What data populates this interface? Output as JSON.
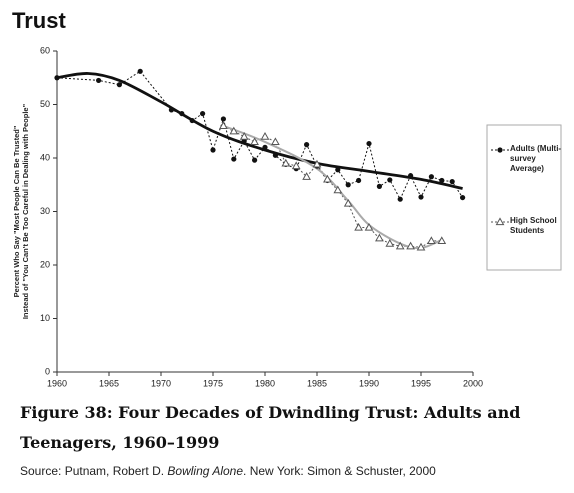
{
  "chart_data": {
    "type": "line",
    "title": "Trust",
    "y_label": [
      "Percent Who Say \"Most People Can Be Trusted\"",
      "Instead of \"You Can't Be Too Careful in Dealing with People\""
    ],
    "xlim": [
      1960,
      2000
    ],
    "xticks": [
      1960,
      1965,
      1970,
      1975,
      1980,
      1985,
      1990,
      1995,
      2000
    ],
    "ylim": [
      0,
      60
    ],
    "yticks": [
      0,
      10,
      20,
      30,
      40,
      50,
      60
    ],
    "legend": "right",
    "series": [
      {
        "name": "Adults (Multi-survey Average)",
        "marker": "circle",
        "color": "#111111",
        "x": [
          1960,
          1964,
          1966,
          1968,
          1971,
          1972,
          1973,
          1974,
          1975,
          1976,
          1977,
          1978,
          1979,
          1980,
          1981,
          1982,
          1983,
          1984,
          1985,
          1986,
          1987,
          1988,
          1989,
          1990,
          1991,
          1992,
          1993,
          1994,
          1995,
          1996,
          1997,
          1998,
          1999
        ],
        "values": [
          55,
          54.5,
          53.7,
          56.2,
          49,
          48.3,
          47,
          48.3,
          41.5,
          47.3,
          39.8,
          43.2,
          39.6,
          42,
          40.5,
          38.8,
          38,
          42.5,
          38.5,
          35.8,
          37.8,
          35,
          35.8,
          42.7,
          34.7,
          35.9,
          32.3,
          36.7,
          32.7,
          36.5,
          35.8,
          35.6,
          32.6
        ],
        "trend": {
          "color": "#111111",
          "x": [
            1960,
            1963,
            1966,
            1970,
            1975,
            1980,
            1985,
            1990,
            1995,
            1999
          ],
          "values": [
            55,
            55.8,
            54.5,
            50.5,
            45,
            41.5,
            39,
            37.5,
            36,
            34.3
          ]
        }
      },
      {
        "name": "High School Students",
        "marker": "triangle",
        "color": "#555555",
        "x": [
          1976,
          1977,
          1978,
          1979,
          1980,
          1981,
          1982,
          1983,
          1984,
          1985,
          1986,
          1987,
          1988,
          1989,
          1990,
          1991,
          1992,
          1993,
          1994,
          1995,
          1996,
          1997
        ],
        "values": [
          46,
          45,
          44,
          43,
          44,
          43,
          39,
          38.5,
          36.5,
          38.8,
          36,
          34,
          31.5,
          27,
          27,
          25,
          24,
          23.5,
          23.5,
          23.3,
          24.5,
          24.5
        ],
        "trend": {
          "color": "#aaaaaa",
          "x": [
            1976,
            1980,
            1985,
            1988,
            1990,
            1993,
            1995,
            1997
          ],
          "values": [
            46,
            43,
            38,
            32,
            27.5,
            24,
            23.2,
            24.7
          ]
        }
      }
    ],
    "caption": "Figure 38: Four Decades of Dwindling Trust: Adults and Teenagers, 1960–1999",
    "source": {
      "prefix": "Source: Putnam, Robert D.",
      "book": "Bowling Alone",
      "suffix": ". New York: Simon & Schuster, 2000"
    }
  }
}
